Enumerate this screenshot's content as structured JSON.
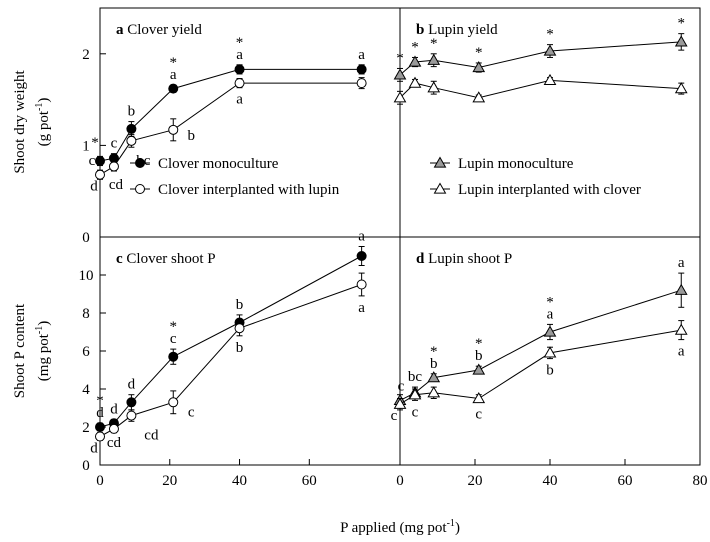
{
  "chart_data": {
    "type": "line",
    "xlabel_text": "P applied",
    "xlabel_unit": "(mg pot",
    "xlabel_exp": "-1",
    "xlabel_close": ")",
    "ylabel_top_line1": "Shoot dry weight",
    "ylabel_top_line2_text": "(g pot",
    "ylabel_top_line2_exp": "-1",
    "ylabel_top_line2_close": ")",
    "ylabel_bottom_line1": "Shoot P content",
    "ylabel_bottom_line2_text": "(mg pot",
    "ylabel_bottom_line2_exp": "-1",
    "ylabel_bottom_line2_close": ")",
    "left_x_ticks": [
      "0",
      "20",
      "40",
      "60"
    ],
    "right_x_ticks": [
      "0",
      "20",
      "40",
      "60",
      "80"
    ],
    "xlim": [
      0,
      80
    ],
    "top_y_ticks": [
      "0",
      "1",
      "2"
    ],
    "top_ylim": [
      0,
      2.5
    ],
    "bottom_y_ticks": [
      "0",
      "2",
      "4",
      "6",
      "8",
      "10"
    ],
    "bottom_ylim": [
      0,
      12
    ],
    "panels": [
      {
        "id": "a",
        "letter": "a",
        "title": "Clover  yield",
        "legend": [
          "Clover  monoculture",
          "Clover  interplanted  with  lupin"
        ],
        "series": [
          {
            "name": "Clover  monoculture",
            "marker": "circle-filled",
            "x": [
              0,
              4,
              9,
              21,
              40,
              75
            ],
            "y": [
              0.83,
              0.86,
              1.18,
              1.62,
              1.83,
              1.83
            ],
            "err": [
              0.05,
              0.05,
              0.08,
              0.04,
              0.05,
              0.05
            ],
            "labels": [
              "c",
              "c",
              "b",
              "a",
              "a",
              "a"
            ],
            "stars": [
              true,
              false,
              false,
              true,
              true,
              false
            ]
          },
          {
            "name": "Clover  interplanted  with  lupin",
            "marker": "circle-open",
            "x": [
              0,
              4,
              9,
              21,
              40,
              75
            ],
            "y": [
              0.68,
              0.77,
              1.05,
              1.17,
              1.68,
              1.68
            ],
            "err": [
              0.05,
              0.05,
              0.07,
              0.12,
              0.05,
              0.06
            ],
            "labels": [
              "d",
              "cd",
              "bc",
              "b",
              "a",
              ""
            ],
            "stars": [
              false,
              false,
              false,
              false,
              false,
              false
            ]
          }
        ]
      },
      {
        "id": "b",
        "letter": "b",
        "title": "Lupin  yield",
        "legend": [
          "Lupin  monoculture",
          "Lupin  interplanted  with  clover"
        ],
        "series": [
          {
            "name": "Lupin  monoculture",
            "marker": "triangle-filled",
            "x": [
              0,
              4,
              9,
              21,
              40,
              75
            ],
            "y": [
              1.77,
              1.91,
              1.93,
              1.85,
              2.03,
              2.13
            ],
            "err": [
              0.07,
              0.05,
              0.07,
              0.05,
              0.07,
              0.09
            ],
            "labels": [
              "",
              "",
              "",
              "",
              "",
              ""
            ],
            "stars": [
              true,
              true,
              true,
              true,
              true,
              true
            ]
          },
          {
            "name": "Lupin  interplanted  with  clover",
            "marker": "triangle-open",
            "x": [
              0,
              4,
              9,
              21,
              40,
              75
            ],
            "y": [
              1.52,
              1.68,
              1.63,
              1.52,
              1.71,
              1.62
            ],
            "err": [
              0.07,
              0.04,
              0.07,
              0.03,
              0.03,
              0.06
            ],
            "labels": [
              "",
              "",
              "",
              "",
              "",
              ""
            ],
            "stars": [
              false,
              false,
              false,
              false,
              false,
              false
            ]
          }
        ]
      },
      {
        "id": "c",
        "letter": "c",
        "title": "Clover  shoot P",
        "legend": [],
        "series": [
          {
            "name": "Clover  monoculture",
            "marker": "circle-filled",
            "x": [
              0,
              4,
              9,
              21,
              40,
              75
            ],
            "y": [
              2.0,
              2.2,
              3.3,
              5.7,
              7.5,
              11.0
            ],
            "err": [
              0.2,
              0.2,
              0.4,
              0.4,
              0.4,
              0.5
            ],
            "labels": [
              "d",
              "d",
              "d",
              "c",
              "b",
              "a"
            ],
            "stars": [
              true,
              false,
              false,
              true,
              false,
              false
            ]
          },
          {
            "name": "Clover  interplanted  with  lupin",
            "marker": "circle-open",
            "x": [
              0,
              4,
              9,
              21,
              40,
              75
            ],
            "y": [
              1.5,
              1.9,
              2.6,
              3.3,
              7.2,
              9.5
            ],
            "err": [
              0.2,
              0.2,
              0.3,
              0.6,
              0.4,
              0.6
            ],
            "labels": [
              "d",
              "cd",
              "cd",
              "c",
              "b",
              "a"
            ],
            "stars": [
              false,
              false,
              false,
              false,
              false,
              false
            ]
          }
        ]
      },
      {
        "id": "d",
        "letter": "d",
        "title": "Lupin  shoot P",
        "legend": [],
        "series": [
          {
            "name": "Lupin  monoculture",
            "marker": "triangle-filled",
            "x": [
              0,
              4,
              9,
              21,
              40,
              75
            ],
            "y": [
              3.4,
              3.8,
              4.6,
              5.0,
              7.0,
              9.2
            ],
            "err": [
              0.3,
              0.3,
              0.2,
              0.2,
              0.4,
              0.9
            ],
            "labels": [
              "c",
              "bc",
              "b",
              "b",
              "a",
              "a"
            ],
            "stars": [
              false,
              false,
              true,
              true,
              true,
              false
            ]
          },
          {
            "name": "Lupin  interplanted  with  clover",
            "marker": "triangle-open",
            "x": [
              0,
              4,
              9,
              21,
              40,
              75
            ],
            "y": [
              3.2,
              3.7,
              3.8,
              3.5,
              5.9,
              7.1
            ],
            "err": [
              0.3,
              0.3,
              0.3,
              0.2,
              0.3,
              0.5
            ],
            "labels": [
              "c",
              "c",
              "",
              "c",
              "b",
              "a"
            ],
            "stars": [
              false,
              false,
              false,
              false,
              false,
              false
            ]
          }
        ]
      }
    ]
  }
}
